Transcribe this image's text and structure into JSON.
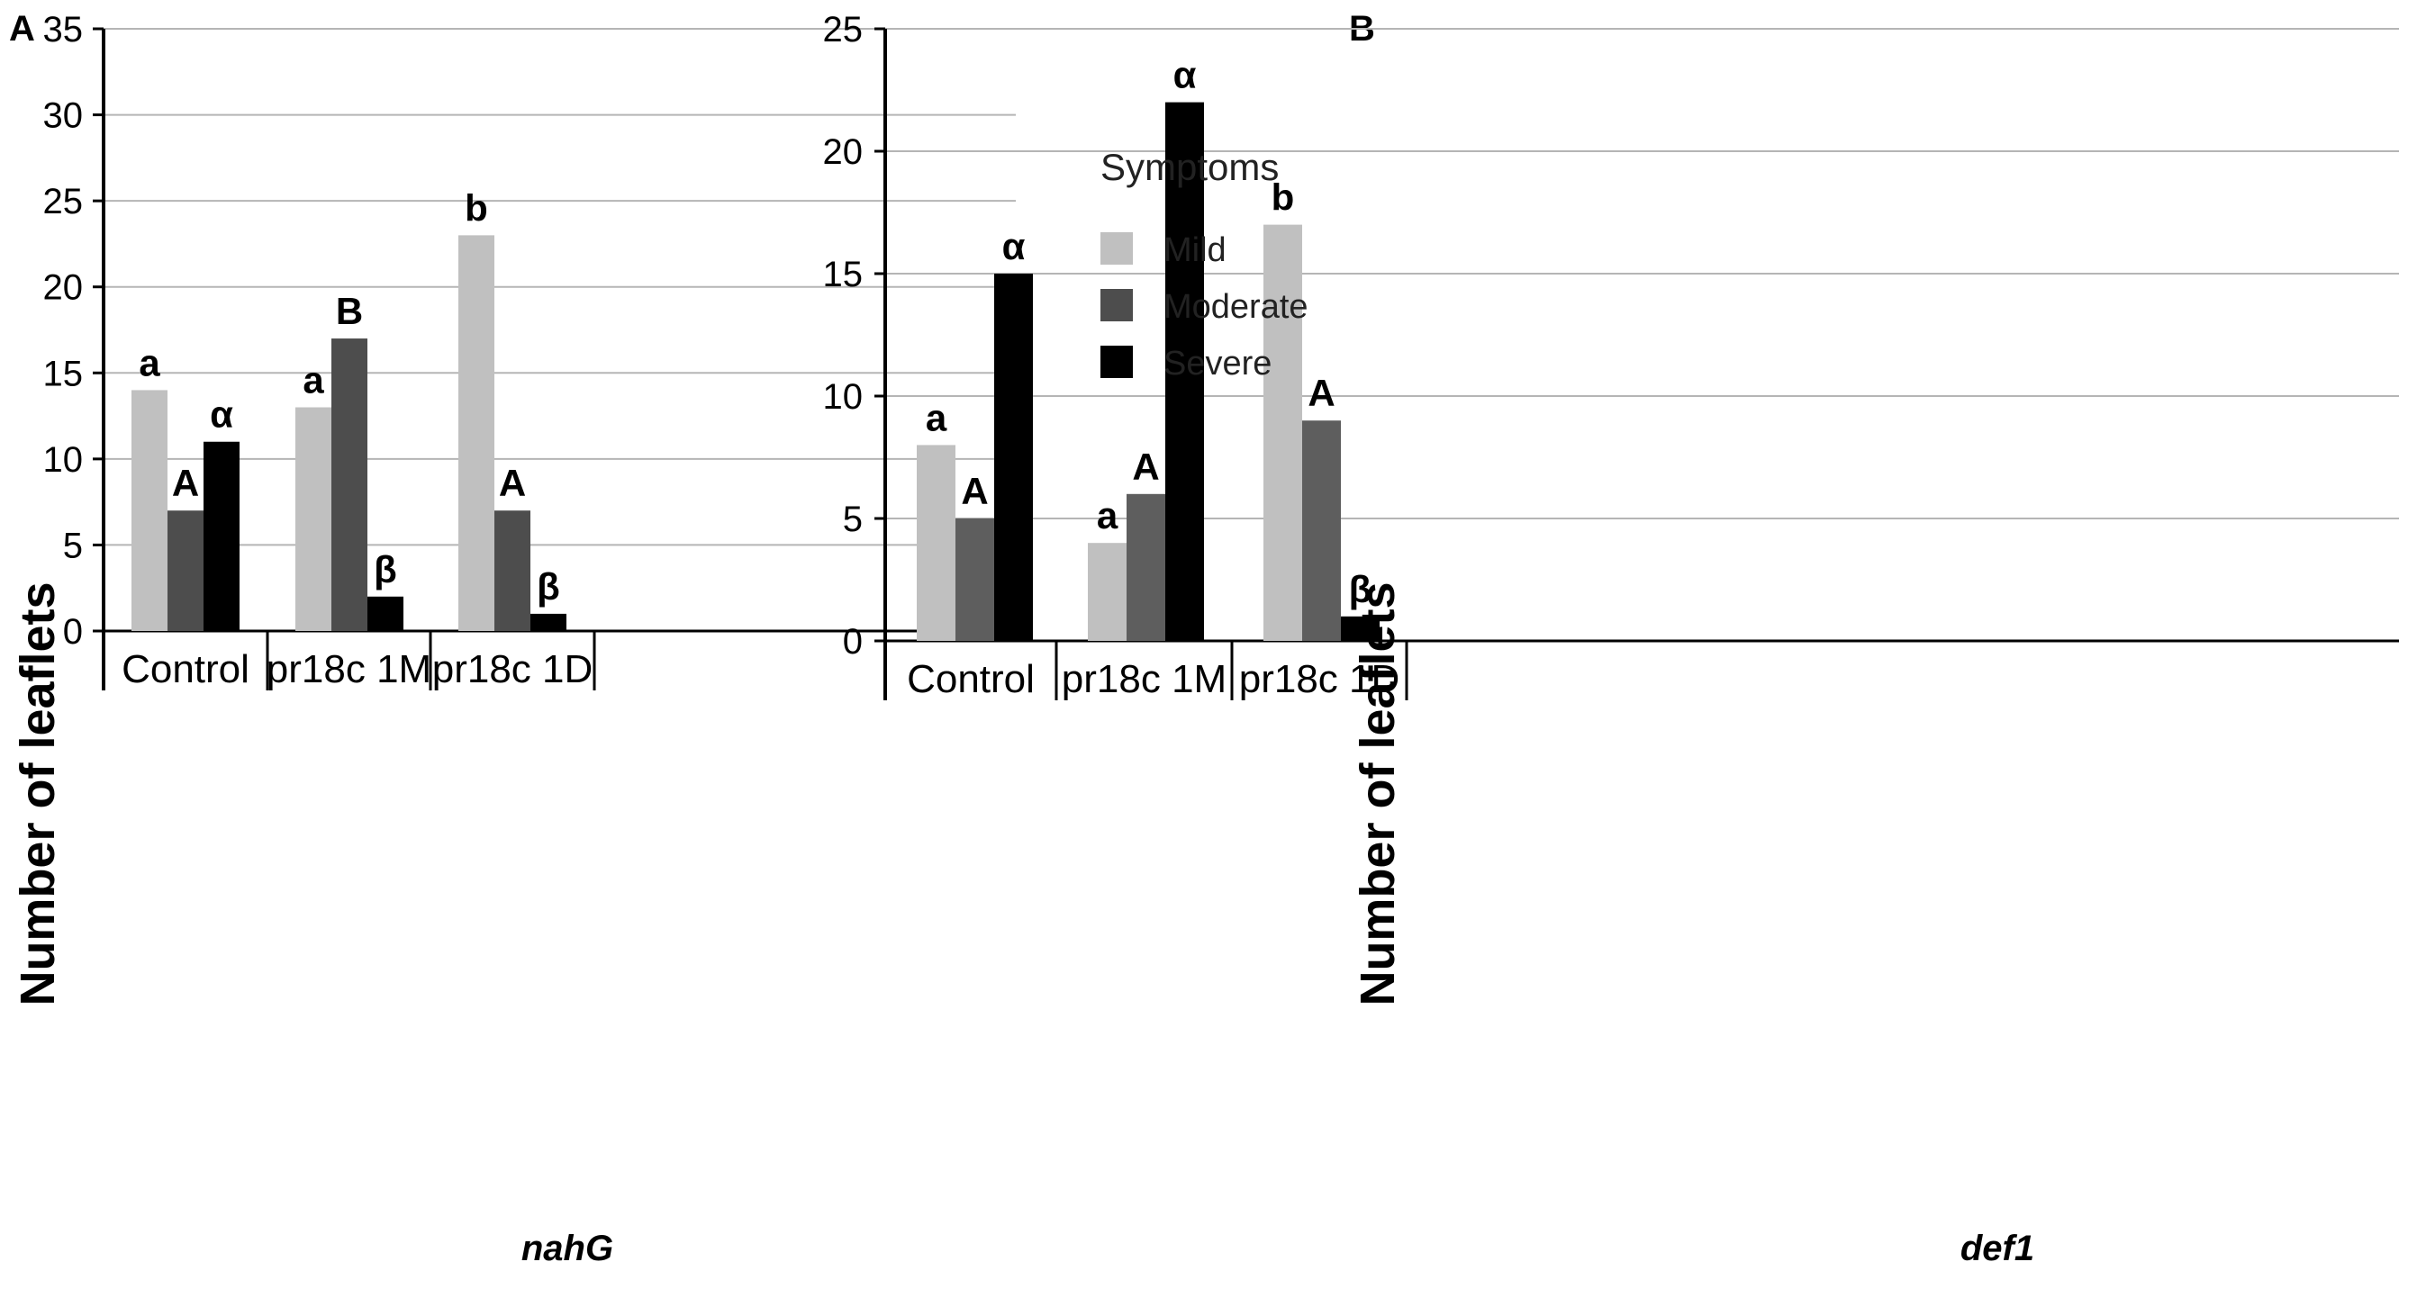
{
  "chart_data": [
    {
      "type": "bar",
      "panel": "A",
      "categories": [
        "Control",
        "pr18c 1M",
        "pr18c 1D"
      ],
      "series": [
        {
          "name": "Mild",
          "values": [
            14,
            13,
            23
          ],
          "labels": [
            "a",
            "a",
            "b"
          ],
          "color": "#c0c0c0"
        },
        {
          "name": "Moderate",
          "values": [
            7,
            17,
            7
          ],
          "labels": [
            "A",
            "B",
            "A"
          ],
          "color": "#4d4d4d"
        },
        {
          "name": "Severe",
          "values": [
            11,
            2,
            1
          ],
          "labels": [
            "α",
            "β",
            "β"
          ],
          "color": "#000000"
        }
      ],
      "ylabel": "Number of leaflets",
      "xlabel": "nahG",
      "ylim": [
        0,
        35
      ],
      "yticks": [
        0,
        5,
        10,
        15,
        20,
        25,
        30,
        35
      ],
      "grid": true
    },
    {
      "type": "bar",
      "panel": "B",
      "categories": [
        "Control",
        "pr18c 1M",
        "pr18c 1D"
      ],
      "series": [
        {
          "name": "Mild",
          "values": [
            8,
            4,
            17
          ],
          "labels": [
            "a",
            "a",
            "b"
          ],
          "color": "#c0c0c0"
        },
        {
          "name": "Moderate",
          "values": [
            5,
            6,
            9
          ],
          "labels": [
            "A",
            "A",
            "A"
          ],
          "color": "#5e5e5e"
        },
        {
          "name": "Severe",
          "values": [
            15,
            22,
            1
          ],
          "labels": [
            "α",
            "α",
            "β"
          ],
          "color": "#000000"
        }
      ],
      "ylabel": "Number of leaflets",
      "xlabel": "def1",
      "ylim": [
        0,
        25
      ],
      "yticks": [
        0,
        5,
        10,
        15,
        20,
        25
      ],
      "grid": true
    }
  ],
  "legend": {
    "title": "Symptoms",
    "items": [
      {
        "label": "Mild",
        "color": "#c0c0c0"
      },
      {
        "label": "Moderate",
        "color": "#4d4d4d"
      },
      {
        "label": "Severe",
        "color": "#000000"
      }
    ]
  }
}
